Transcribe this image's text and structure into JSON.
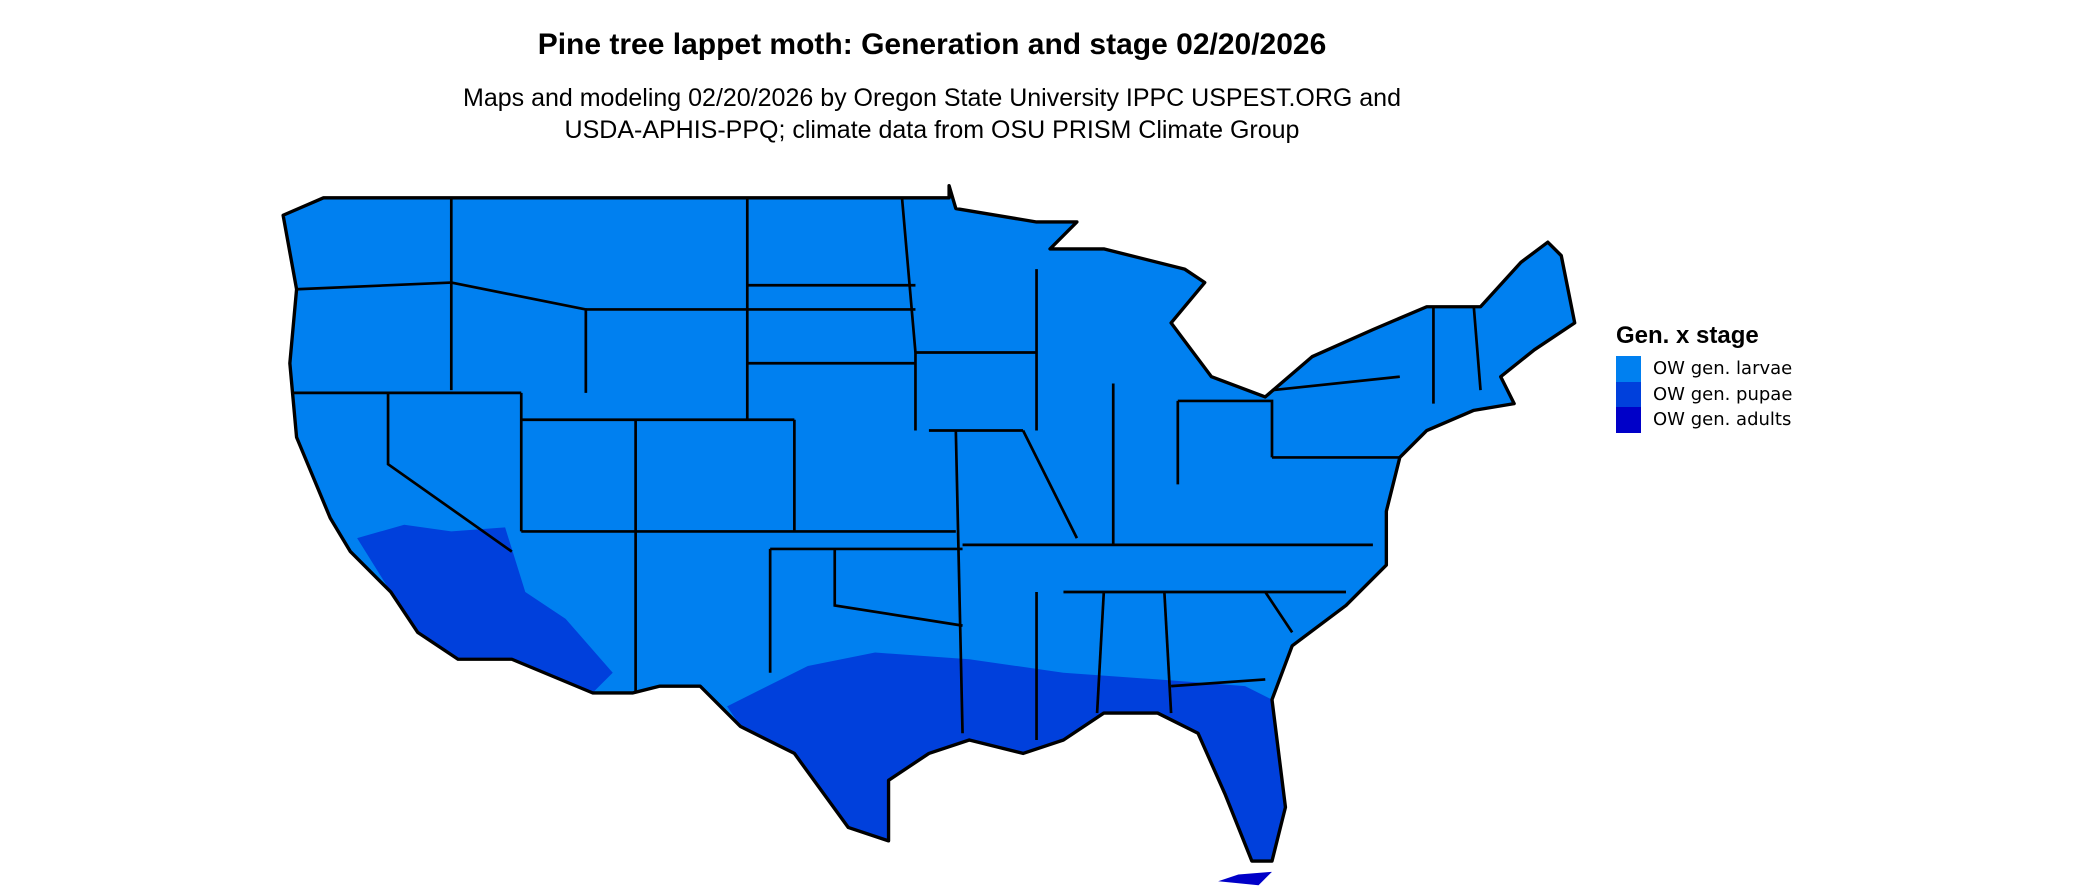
{
  "title": "Pine tree lappet moth: Generation and stage 02/20/2026",
  "subtitle_lines": [
    "Maps and modeling 02/20/2026 by Oregon State University IPPC USPEST.ORG and",
    "USDA-APHIS-PPQ; climate data from OSU PRISM Climate Group"
  ],
  "legend": {
    "title": "Gen. x stage",
    "items": [
      {
        "label": "OW gen. larvae",
        "color": "#0080F0"
      },
      {
        "label": "OW gen. pupae",
        "color": "#0040DC"
      },
      {
        "label": "OW gen. adults",
        "color": "#0000C8"
      }
    ]
  },
  "map": {
    "region": "Contiguous United States",
    "boundary_color": "#000000",
    "background": "#FFFFFF"
  }
}
